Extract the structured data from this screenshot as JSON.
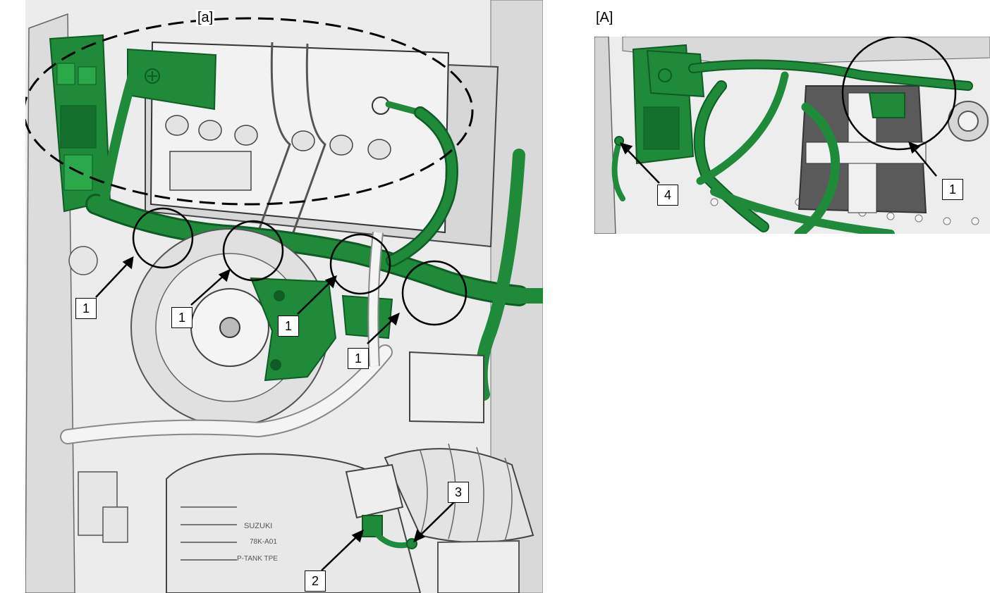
{
  "labels": {
    "region_a": "[a]",
    "view_A": "[A]"
  },
  "callouts": {
    "c1a": "1",
    "c1b": "1",
    "c1c": "1",
    "c1d": "1",
    "c2": "2",
    "c3": "3",
    "c1_right": "1",
    "c4_right": "4"
  },
  "colors": {
    "harness": "#1e8a3a",
    "harness_dark": "#0f5c24",
    "body": "#e6e6e6",
    "outline": "#555555",
    "white": "#ffffff"
  }
}
